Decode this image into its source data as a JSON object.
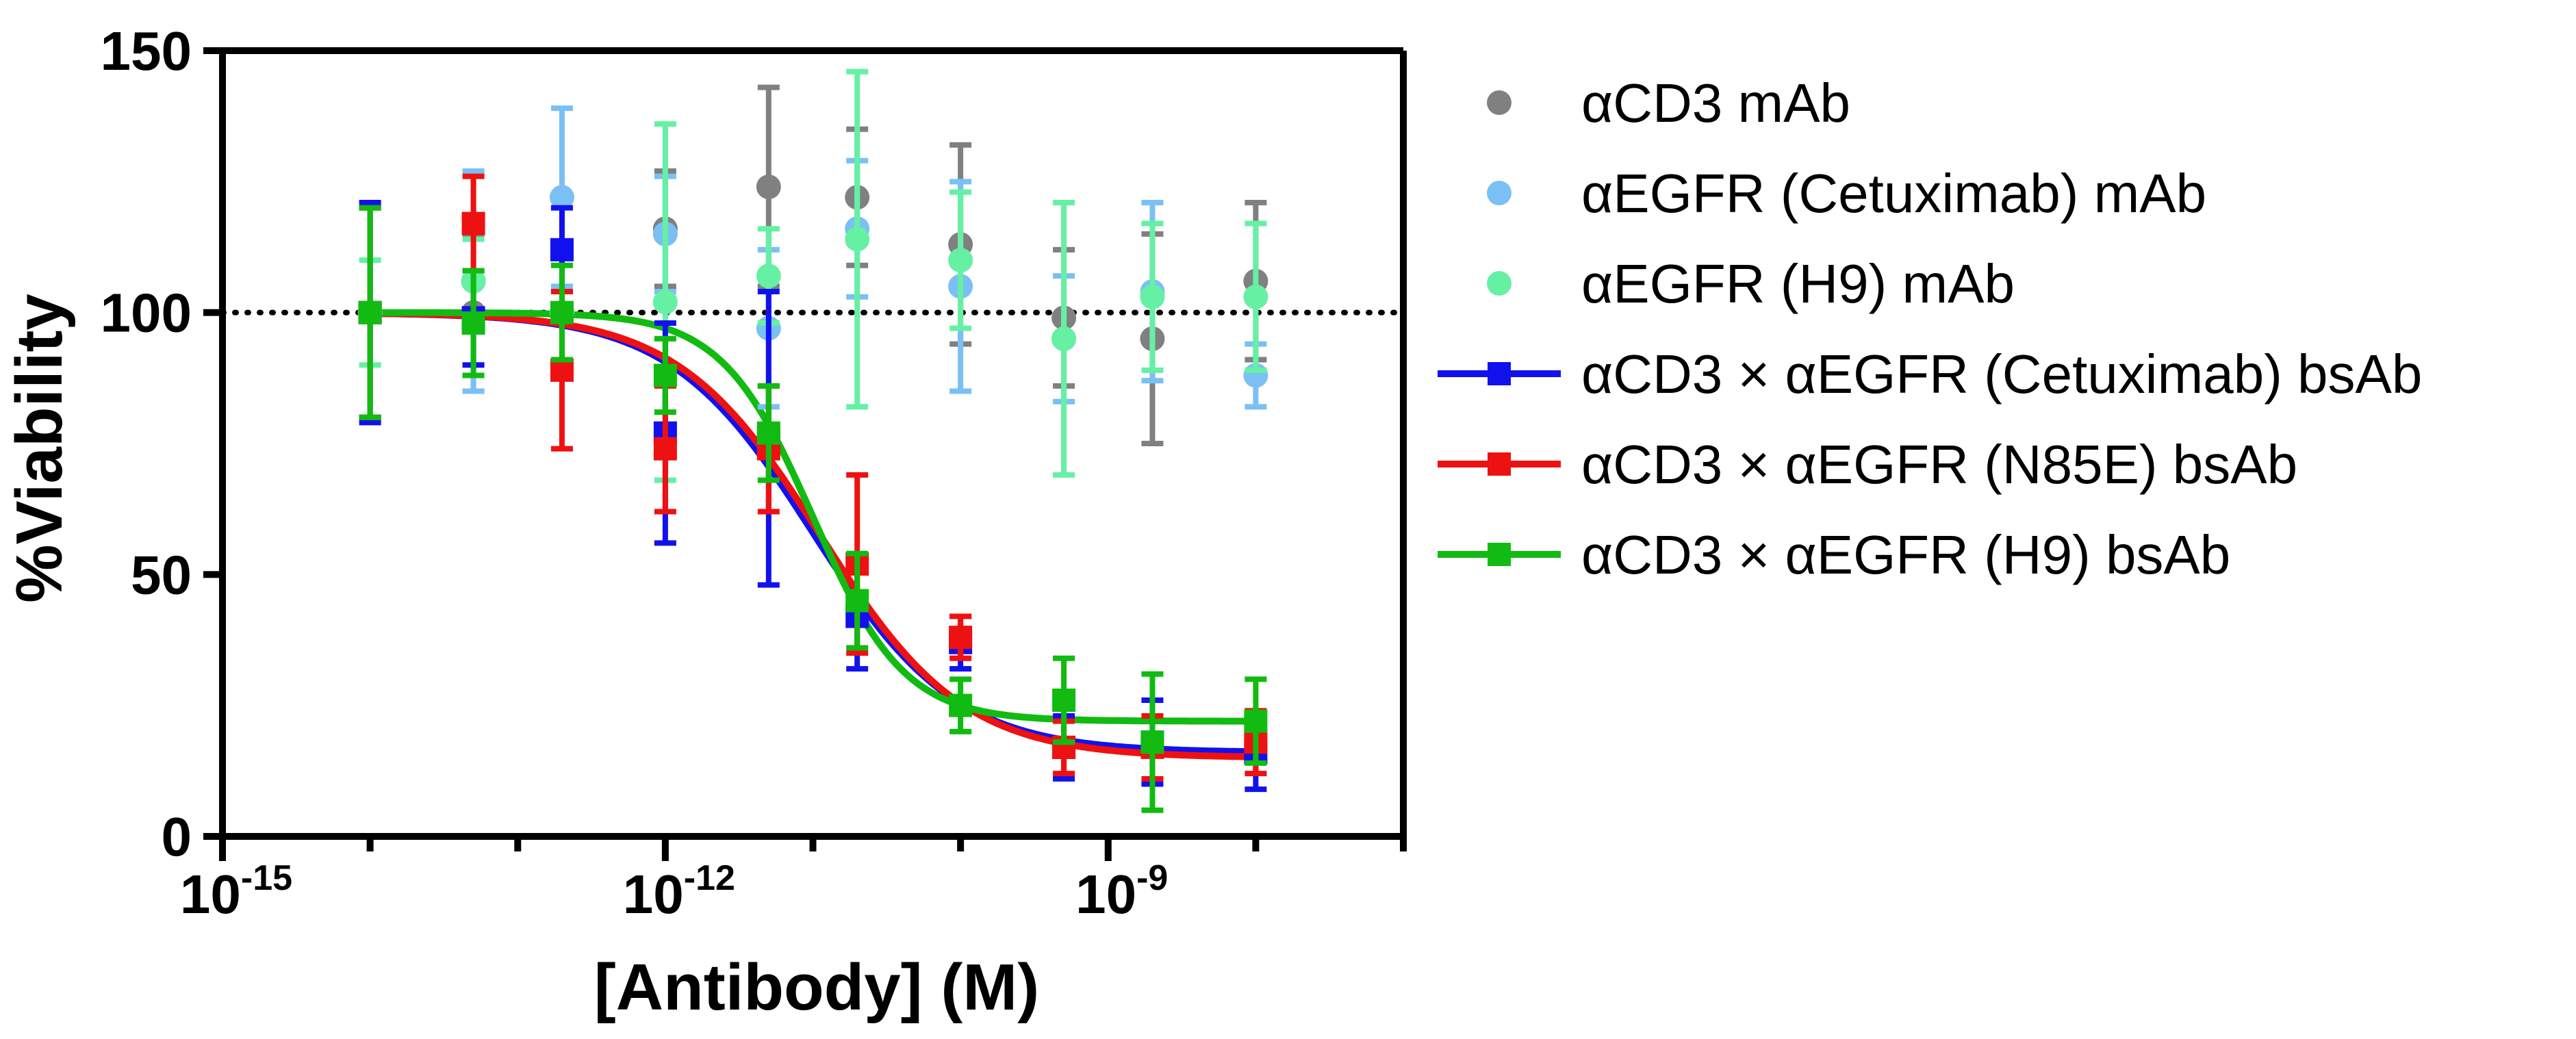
{
  "chart_data": {
    "type": "scatter",
    "title": "",
    "xlabel": "[Antibody] (M)",
    "ylabel": "%Viability",
    "xscale": "log10",
    "xlim_log10": [
      -15,
      -7
    ],
    "ylim": [
      0,
      150
    ],
    "y_ticks": [
      0,
      50,
      100,
      150
    ],
    "y_tick_labels": [
      "0",
      "50",
      "100",
      "150"
    ],
    "x_major_ticks_log10": [
      -15,
      -12,
      -9
    ],
    "x_tick_labels": [
      {
        "base": "10",
        "exp": "-15"
      },
      {
        "base": "10",
        "exp": "-12"
      },
      {
        "base": "10",
        "exp": "-9"
      }
    ],
    "reference_line": {
      "y": 100,
      "style": "dotted"
    },
    "legend_position": "right",
    "series": [
      {
        "name": "αCD3 mAb",
        "color": "#808080",
        "marker": "circle",
        "fit": false,
        "x_log10": [
          -14.0,
          -13.3,
          -12.7,
          -12.0,
          -11.3,
          -10.7,
          -10.0,
          -9.3,
          -8.7,
          -8.0
        ],
        "y": [
          100,
          100,
          100,
          116,
          124,
          122,
          113,
          99,
          95,
          106
        ],
        "err": [
          20,
          15,
          12,
          11,
          19,
          13,
          19,
          13,
          20,
          15
        ]
      },
      {
        "name": "αEGFR (Cetuximab) mAb",
        "color": "#7ac0f5",
        "marker": "circle",
        "fit": false,
        "x_log10": [
          -14.0,
          -13.3,
          -12.7,
          -12.0,
          -11.3,
          -10.7,
          -10.0,
          -9.3,
          -8.7,
          -8.0
        ],
        "y": [
          100,
          106,
          122,
          115,
          97,
          116,
          105,
          95,
          104,
          88
        ],
        "err": [
          20,
          21,
          17,
          11,
          15,
          13,
          20,
          12,
          17,
          6
        ]
      },
      {
        "name": "αEGFR (H9) mAb",
        "color": "#66f0a4",
        "marker": "circle",
        "fit": false,
        "x_log10": [
          -14.0,
          -13.3,
          -12.7,
          -12.0,
          -11.3,
          -10.7,
          -10.0,
          -9.3,
          -8.7,
          -8.0
        ],
        "y": [
          100,
          106,
          100,
          102,
          107,
          114,
          110,
          95,
          103,
          103
        ],
        "err": [
          10,
          8,
          12,
          34,
          9,
          32,
          13,
          26,
          14,
          14
        ]
      },
      {
        "name": "αCD3 × αEGFR (Cetuximab) bsAb",
        "color": "#1111ee",
        "marker": "square",
        "fit": true,
        "x_log10": [
          -14.0,
          -13.3,
          -12.7,
          -12.0,
          -11.3,
          -10.7,
          -10.0,
          -9.3,
          -8.7,
          -8.0
        ],
        "y": [
          100,
          99,
          112,
          77,
          76,
          42,
          37,
          17,
          18,
          16
        ],
        "err": [
          21,
          9,
          8,
          21,
          28,
          10,
          5,
          6,
          8,
          7
        ],
        "fit_params": {
          "top": 100,
          "bottom": 16,
          "log_ic50": -11.0,
          "hill": 0.9
        }
      },
      {
        "name": "αCD3 × αEGFR (N85E) bsAb",
        "color": "#ee1111",
        "marker": "square",
        "fit": true,
        "x_log10": [
          -14.0,
          -13.3,
          -12.7,
          -12.0,
          -11.3,
          -10.7,
          -10.0,
          -9.3,
          -8.7,
          -8.0
        ],
        "y": [
          100,
          117,
          89,
          74,
          74,
          52,
          38,
          17,
          17,
          18
        ],
        "err": [
          20,
          9,
          15,
          12,
          12,
          17,
          4,
          5,
          6,
          6
        ],
        "fit_params": {
          "top": 100,
          "bottom": 15,
          "log_ic50": -10.95,
          "hill": 0.9
        }
      },
      {
        "name": "αCD3 × αEGFR (H9) bsAb",
        "color": "#11bb11",
        "marker": "square",
        "fit": true,
        "x_log10": [
          -14.0,
          -13.3,
          -12.7,
          -12.0,
          -11.3,
          -10.7,
          -10.0,
          -9.3,
          -8.7,
          -8.0
        ],
        "y": [
          100,
          98,
          100,
          88,
          77,
          45,
          25,
          26,
          18,
          22
        ],
        "err": [
          20,
          10,
          9,
          7,
          9,
          9,
          5,
          8,
          13,
          8
        ],
        "fit_params": {
          "top": 100,
          "bottom": 22,
          "log_ic50": -11.0,
          "hill": 1.4
        }
      }
    ]
  }
}
